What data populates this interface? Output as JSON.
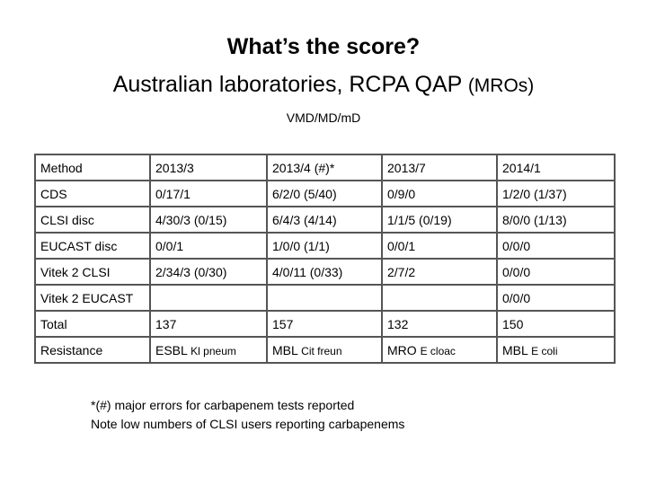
{
  "title": {
    "line1": "What’s the score?",
    "line2_main": "Australian laboratories, RCPA QAP",
    "line2_suffix": "(MROs)"
  },
  "subtitle": "VMD/MD/mD",
  "table": {
    "header": [
      "Method",
      "2013/3",
      "2013/4 (#)*",
      "2013/7",
      "2014/1"
    ],
    "rows": [
      {
        "method": "CDS",
        "cells": [
          "0/17/1",
          "6/2/0 (5/40)",
          "0/9/0",
          "1/2/0 (1/37)"
        ]
      },
      {
        "method": "CLSI disc",
        "cells": [
          "4/30/3 (0/15)",
          "6/4/3 (4/14)",
          "1/1/5 (0/19)",
          "8/0/0 (1/13)"
        ]
      },
      {
        "method": "EUCAST disc",
        "cells": [
          "0/0/1",
          "1/0/0 (1/1)",
          "0/0/1",
          "0/0/0"
        ]
      },
      {
        "method": "Vitek 2 CLSI",
        "cells": [
          "2/34/3 (0/30)",
          "4/0/11 (0/33)",
          "2/7/2",
          "0/0/0"
        ]
      },
      {
        "method": "Vitek 2 EUCAST",
        "cells": [
          "",
          "",
          "",
          "0/0/0"
        ]
      },
      {
        "method": "Total",
        "cells": [
          "137",
          "157",
          "132",
          "150"
        ]
      }
    ],
    "resistance": {
      "label": "Resistance",
      "cells": [
        {
          "main": "ESBL",
          "org": "Kl pneum"
        },
        {
          "main": "MBL",
          "org": "Cit freun"
        },
        {
          "main": "MRO",
          "org": "E cloac"
        },
        {
          "main": "MBL",
          "org": "E coli"
        }
      ]
    }
  },
  "notes": [
    "*(#) major errors for carbapenem tests reported",
    "Note low numbers of CLSI users reporting carbapenems"
  ]
}
